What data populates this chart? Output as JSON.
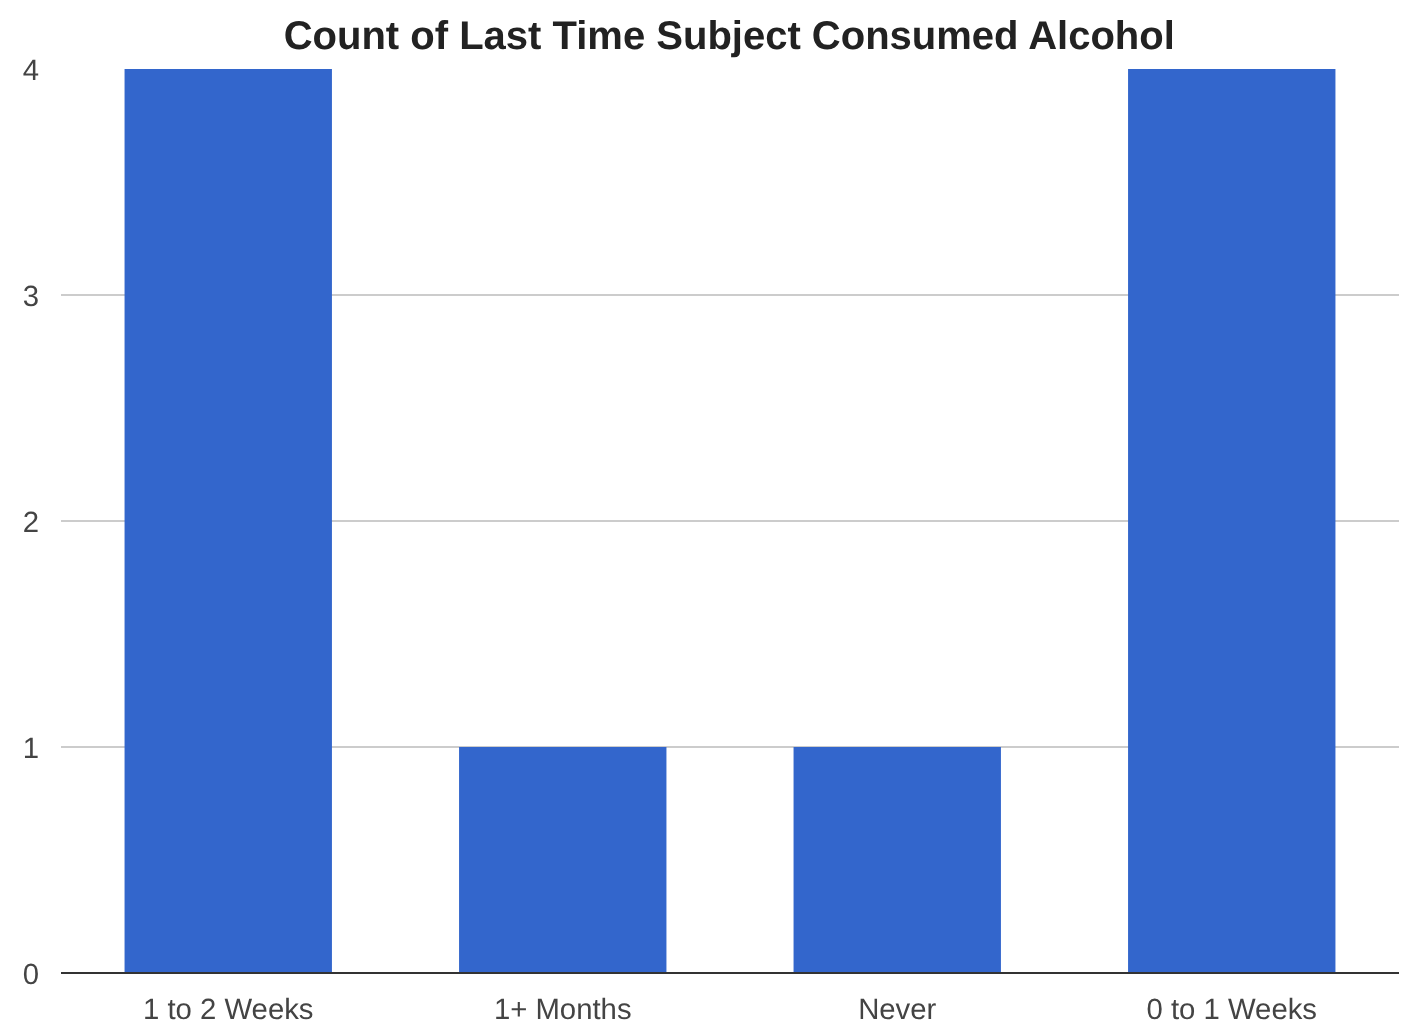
{
  "chart_data": {
    "type": "bar",
    "title": "Count of Last Time Subject Consumed Alcohol",
    "categories": [
      "1 to 2 Weeks",
      "1+ Months",
      "Never",
      "0 to 1 Weeks"
    ],
    "values": [
      4,
      1,
      1,
      4
    ],
    "color": "#3366cc",
    "ylim": [
      0,
      4
    ],
    "yticks": [
      0,
      1,
      2,
      3,
      4
    ],
    "grid": "y"
  }
}
